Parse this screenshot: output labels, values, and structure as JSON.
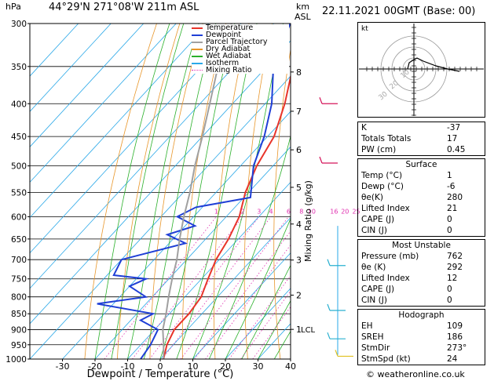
{
  "header": {
    "hpa_label": "hPa",
    "location": "44°29'N  271°08'W  211m  ASL",
    "km_label": "km",
    "asl_label": "ASL",
    "datetime": "22.11.2021  00GMT  (Base: 00)",
    "credit": "© weatheronline.co.uk"
  },
  "legend": [
    {
      "label": "Temperature",
      "color": "#e8342a"
    },
    {
      "label": "Dewpoint",
      "color": "#1f3fd6"
    },
    {
      "label": "Parcel Trajectory",
      "color": "#a0a0a0"
    },
    {
      "label": "Dry Adiabat",
      "color": "#e8962a"
    },
    {
      "label": "Wet Adiabat",
      "color": "#2ab02a"
    },
    {
      "label": "Isotherm",
      "color": "#2aa8e8"
    },
    {
      "label": "Mixing Ratio",
      "color": "#e030b0"
    }
  ],
  "chart_data": {
    "type": "line",
    "subtype": "skew-T log-p",
    "xlabel": "Dewpoint / Temperature (°C)",
    "ylabel_right": "Mixing Ratio (g/kg)",
    "pressure_ticks": [
      300,
      350,
      400,
      450,
      500,
      550,
      600,
      650,
      700,
      750,
      800,
      850,
      900,
      950,
      1000
    ],
    "temperature_ticks": [
      -30,
      -20,
      -10,
      0,
      10,
      20,
      30,
      40
    ],
    "ylim": [
      1000,
      300
    ],
    "km_ticks": [
      {
        "label": "8",
        "p": 357
      },
      {
        "label": "7",
        "p": 411
      },
      {
        "label": "6",
        "p": 472
      },
      {
        "label": "5",
        "p": 540
      },
      {
        "label": "4",
        "p": 616
      },
      {
        "label": "3",
        "p": 701
      },
      {
        "label": "2",
        "p": 795
      },
      {
        "label": "1",
        "p": 899
      }
    ],
    "lcl": {
      "label": "LCL",
      "p": 898
    },
    "mixing_ratio_labels": [
      "1",
      "2",
      "3",
      "4",
      "6",
      "8",
      "10",
      "16",
      "20",
      "25"
    ],
    "series": [
      {
        "name": "Temperature",
        "color": "#e8342a",
        "points": [
          [
            1000,
            1
          ],
          [
            950,
            -2
          ],
          [
            900,
            -4
          ],
          [
            850,
            -4
          ],
          [
            800,
            -5
          ],
          [
            750,
            -8
          ],
          [
            700,
            -11
          ],
          [
            650,
            -13
          ],
          [
            600,
            -16
          ],
          [
            550,
            -21
          ],
          [
            500,
            -25
          ],
          [
            450,
            -28
          ],
          [
            400,
            -34
          ],
          [
            350,
            -42
          ],
          [
            300,
            -49
          ]
        ]
      },
      {
        "name": "Dewpoint",
        "color": "#1f3fd6",
        "points": [
          [
            1000,
            -6
          ],
          [
            950,
            -7
          ],
          [
            900,
            -9
          ],
          [
            870,
            -17
          ],
          [
            850,
            -15
          ],
          [
            820,
            -35
          ],
          [
            800,
            -22
          ],
          [
            770,
            -30
          ],
          [
            750,
            -27
          ],
          [
            740,
            -38
          ],
          [
            700,
            -40
          ],
          [
            660,
            -25
          ],
          [
            640,
            -33
          ],
          [
            620,
            -27
          ],
          [
            600,
            -35
          ],
          [
            580,
            -32
          ],
          [
            560,
            -18
          ],
          [
            500,
            -26
          ],
          [
            450,
            -31
          ],
          [
            400,
            -38
          ],
          [
            350,
            -48
          ],
          [
            300,
            -55
          ]
        ]
      },
      {
        "name": "Parcel Trajectory",
        "color": "#a0a0a0",
        "points": [
          [
            1000,
            1
          ],
          [
            950,
            -3
          ],
          [
            900,
            -7.5
          ],
          [
            850,
            -11
          ],
          [
            800,
            -15
          ],
          [
            750,
            -19
          ],
          [
            700,
            -23
          ],
          [
            650,
            -28
          ],
          [
            600,
            -33
          ],
          [
            550,
            -38
          ],
          [
            500,
            -44
          ],
          [
            450,
            -50
          ],
          [
            400,
            -57
          ],
          [
            350,
            -65
          ],
          [
            300,
            -73
          ]
        ]
      }
    ]
  },
  "indices": {
    "top": [
      {
        "label": "K",
        "value": "-37"
      },
      {
        "label": "Totals Totals",
        "value": "17"
      },
      {
        "label": "PW (cm)",
        "value": "0.45"
      }
    ],
    "surface": {
      "title": "Surface",
      "rows": [
        {
          "label": "Temp (°C)",
          "value": "1"
        },
        {
          "label": "Dewp (°C)",
          "value": "-6"
        },
        {
          "label": "θe(K)",
          "value": "280"
        },
        {
          "label": "Lifted Index",
          "value": "21"
        },
        {
          "label": "CAPE (J)",
          "value": "0"
        },
        {
          "label": "CIN (J)",
          "value": "0"
        }
      ]
    },
    "most_unstable": {
      "title": "Most Unstable",
      "rows": [
        {
          "label": "Pressure (mb)",
          "value": "762"
        },
        {
          "label": "θe (K)",
          "value": "292"
        },
        {
          "label": "Lifted Index",
          "value": "12"
        },
        {
          "label": "CAPE (J)",
          "value": "0"
        },
        {
          "label": "CIN (J)",
          "value": "0"
        }
      ]
    },
    "hodograph": {
      "title": "Hodograph",
      "rows": [
        {
          "label": "EH",
          "value": "109"
        },
        {
          "label": "SREH",
          "value": "186"
        },
        {
          "label": "StmDir",
          "value": "273°"
        },
        {
          "label": "StmSpd (kt)",
          "value": "24"
        }
      ]
    }
  },
  "hodo": {
    "unit_label": "kt",
    "ring_labels": [
      "10",
      "20",
      "30"
    ]
  }
}
